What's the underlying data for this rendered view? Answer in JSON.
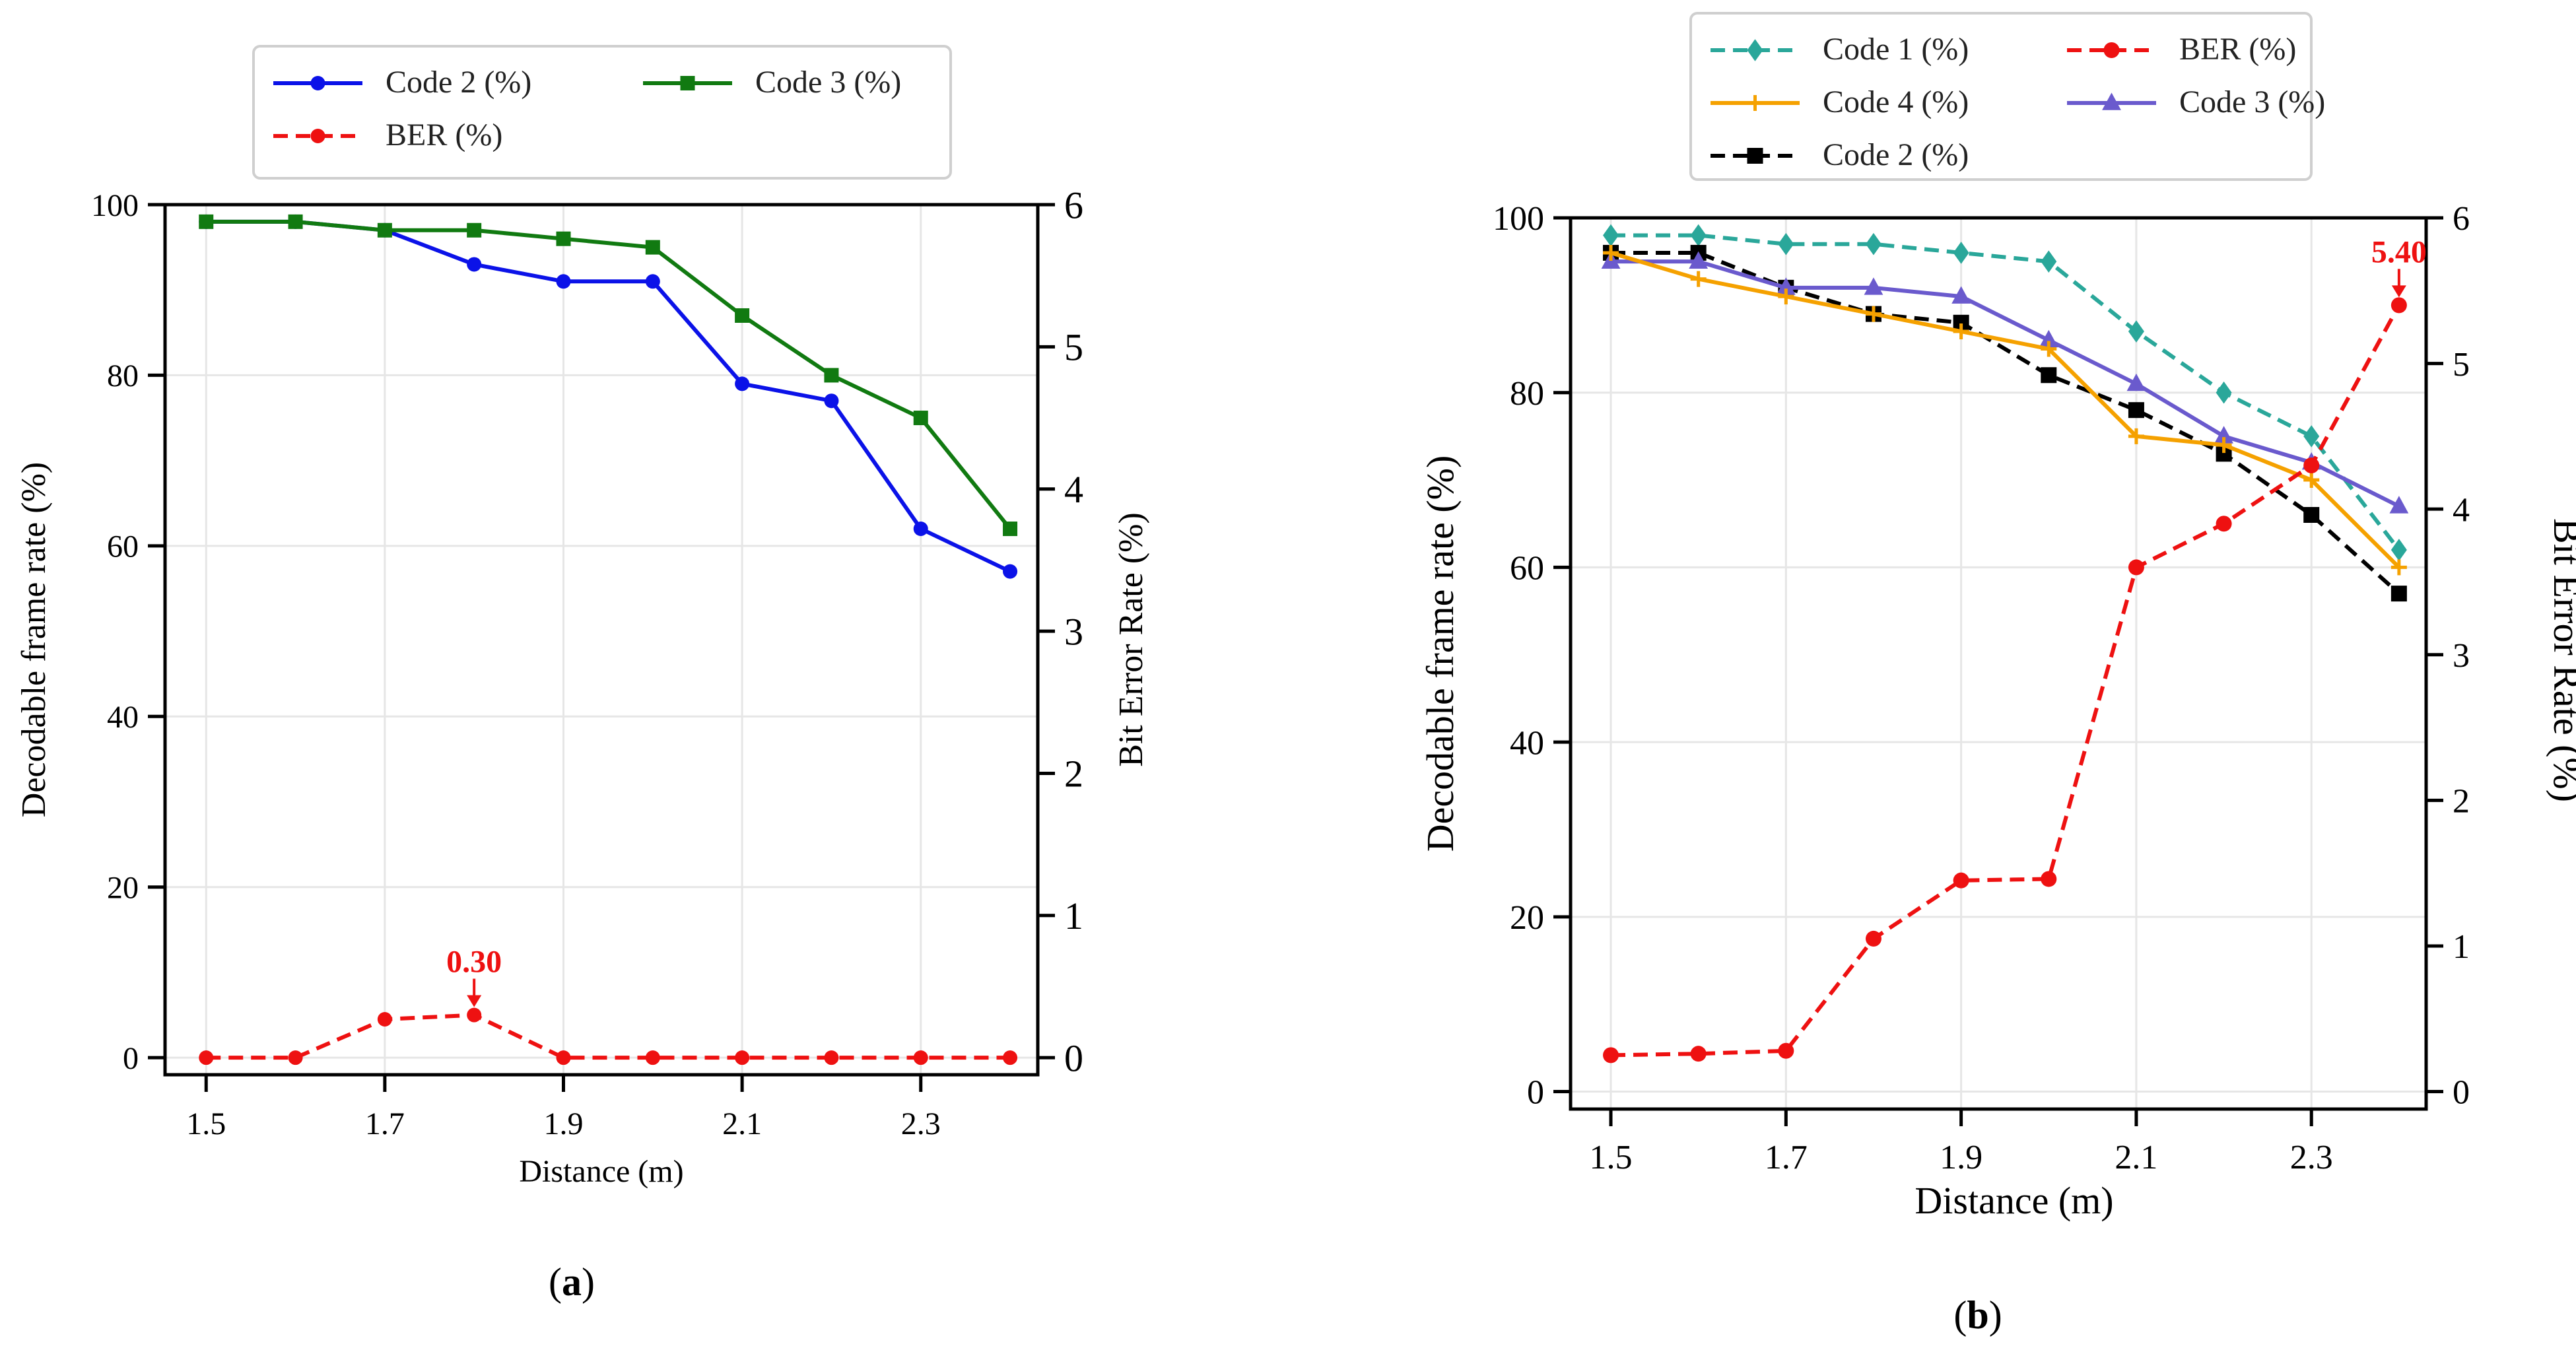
{
  "chart_data": [
    {
      "id": "a",
      "type": "line",
      "caption_letter": "a",
      "x": [
        1.5,
        1.6,
        1.7,
        1.8,
        1.9,
        2.0,
        2.1,
        2.2,
        2.3,
        2.4
      ],
      "xticks": [
        "1.5",
        "1.7",
        "1.9",
        "2.1",
        "2.3"
      ],
      "xtick_values": [
        1.5,
        1.7,
        1.9,
        2.1,
        2.3
      ],
      "xlim": [
        1.454,
        2.431
      ],
      "xlabel": "Distance (m)",
      "ylabel_left": "Decodable frame rate (%)",
      "ylabel_right": "Bit Error Rate (%)",
      "ylim_left": [
        -2,
        100
      ],
      "ylim_right": [
        -0.12,
        6
      ],
      "yticks_left": [
        "0",
        "20",
        "40",
        "60",
        "80",
        "100"
      ],
      "ytick_values_left": [
        0,
        20,
        40,
        60,
        80,
        100
      ],
      "yticks_right": [
        "0",
        "1",
        "2",
        "3",
        "4",
        "5",
        "6"
      ],
      "ytick_values_right": [
        0,
        1,
        2,
        3,
        4,
        5,
        6
      ],
      "grid": true,
      "series": [
        {
          "name": "Code 2 (%)",
          "axis": "left",
          "color": "#0b12e8",
          "dash": "solid",
          "marker": "circle",
          "values": [
            98,
            98,
            97,
            93,
            91,
            91,
            79,
            77,
            62,
            57
          ]
        },
        {
          "name": "Code 3 (%)",
          "axis": "left",
          "color": "#117a11",
          "dash": "solid",
          "marker": "square",
          "values": [
            98,
            98,
            97,
            97,
            96,
            95,
            87,
            80,
            75,
            62
          ]
        },
        {
          "name": "BER (%)",
          "axis": "right",
          "color": "#ee1111",
          "dash": "dashed",
          "marker": "circle",
          "values": [
            0.0,
            0.0,
            0.27,
            0.3,
            0.0,
            0.0,
            0.0,
            0.0,
            0.0,
            0.0
          ]
        }
      ],
      "legend_order": [
        0,
        2,
        1
      ],
      "annotation": {
        "text": "0.30",
        "series": 2,
        "index": 3
      }
    },
    {
      "id": "b",
      "type": "line",
      "caption_letter": "b",
      "x": [
        1.5,
        1.6,
        1.7,
        1.8,
        1.9,
        2.0,
        2.1,
        2.2,
        2.3,
        2.4
      ],
      "xticks": [
        "1.5",
        "1.7",
        "1.9",
        "2.1",
        "2.3"
      ],
      "xtick_values": [
        1.5,
        1.7,
        1.9,
        2.1,
        2.3
      ],
      "xlim": [
        1.454,
        2.431
      ],
      "xlabel": "Distance (m)",
      "ylabel_left": "Decodable frame rate (%)",
      "ylabel_right": "Bit Error Rate (%)",
      "ylim_left": [
        -2,
        100
      ],
      "ylim_right": [
        -0.12,
        6
      ],
      "yticks_left": [
        "0",
        "20",
        "40",
        "60",
        "80",
        "100"
      ],
      "ytick_values_left": [
        0,
        20,
        40,
        60,
        80,
        100
      ],
      "yticks_right": [
        "0",
        "1",
        "2",
        "3",
        "4",
        "5",
        "6"
      ],
      "ytick_values_right": [
        0,
        1,
        2,
        3,
        4,
        5,
        6
      ],
      "grid": true,
      "series": [
        {
          "name": "Code 1 (%)",
          "axis": "left",
          "color": "#2aa79a",
          "dash": "dashed",
          "marker": "diamond",
          "values": [
            98,
            98,
            97,
            97,
            96,
            95,
            87,
            80,
            75,
            62
          ]
        },
        {
          "name": "Code 2 (%)",
          "axis": "left",
          "color": "#000000",
          "dash": "dashed",
          "marker": "square",
          "values": [
            96,
            96,
            92,
            89,
            88,
            82,
            78,
            73,
            66,
            57
          ]
        },
        {
          "name": "Code 3 (%)",
          "axis": "left",
          "color": "#6a5acd",
          "dash": "solid",
          "marker": "triangle",
          "values": [
            95,
            95,
            92,
            92,
            91,
            86,
            81,
            75,
            72,
            67
          ]
        },
        {
          "name": "Code 4 (%)",
          "axis": "left",
          "color": "#f5a100",
          "dash": "solid",
          "marker": "plus",
          "values": [
            96,
            93,
            91,
            89,
            87,
            85,
            75,
            74,
            70,
            60
          ]
        },
        {
          "name": "BER (%)",
          "axis": "right",
          "color": "#ee1111",
          "dash": "dashed",
          "marker": "circle",
          "values": [
            0.25,
            0.26,
            0.28,
            1.05,
            1.45,
            1.46,
            3.6,
            3.9,
            4.3,
            5.4
          ]
        }
      ],
      "legend_order": [
        0,
        3,
        1,
        4,
        2
      ],
      "annotation": {
        "text": "5.40",
        "series": 4,
        "index": 9
      }
    }
  ]
}
